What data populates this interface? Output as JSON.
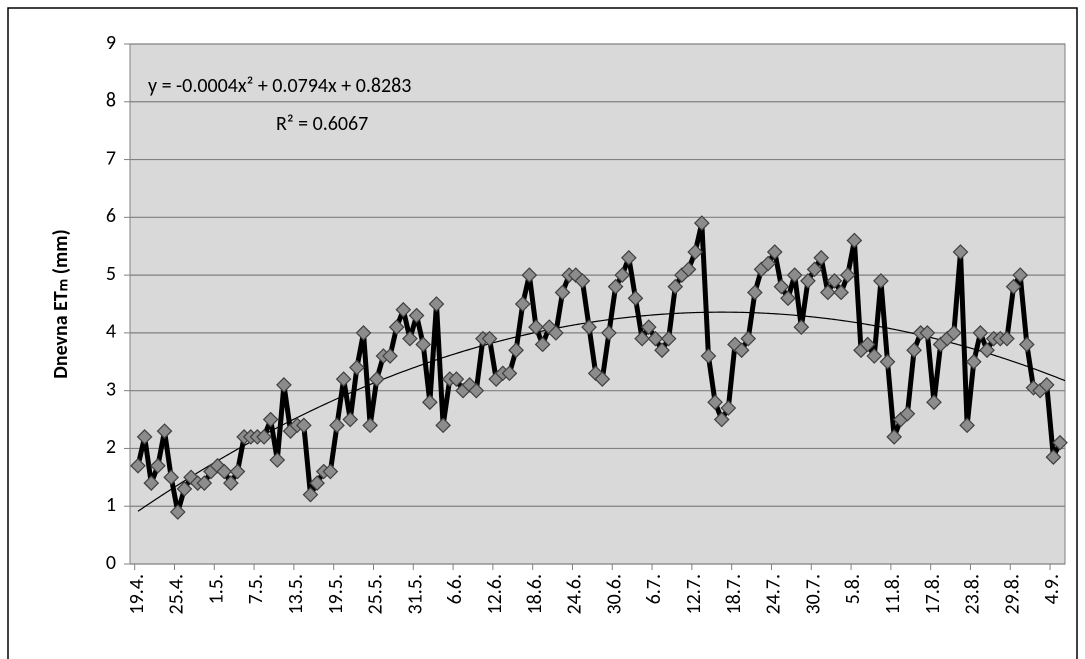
{
  "chart_data": {
    "type": "line",
    "y_label": "Dnevna ETₘ (mm)",
    "categories": [
      "19.4.",
      null,
      null,
      null,
      null,
      null,
      "25.4.",
      null,
      null,
      null,
      null,
      null,
      "1.5.",
      null,
      null,
      null,
      null,
      null,
      "7.5.",
      null,
      null,
      null,
      null,
      null,
      "13.5.",
      null,
      null,
      null,
      null,
      null,
      "19.5.",
      null,
      null,
      null,
      null,
      null,
      "25.5.",
      null,
      null,
      null,
      null,
      null,
      "31.5.",
      null,
      null,
      null,
      null,
      null,
      "6.6.",
      null,
      null,
      null,
      null,
      null,
      "12.6.",
      null,
      null,
      null,
      null,
      null,
      "18.6.",
      null,
      null,
      null,
      null,
      null,
      "24.6.",
      null,
      null,
      null,
      null,
      null,
      "30.6.",
      null,
      null,
      null,
      null,
      null,
      "6.7.",
      null,
      null,
      null,
      null,
      null,
      "12.7.",
      null,
      null,
      null,
      null,
      null,
      "18.7.",
      null,
      null,
      null,
      null,
      null,
      "24.7.",
      null,
      null,
      null,
      null,
      null,
      "30.7.",
      null,
      null,
      null,
      null,
      null,
      "5.8.",
      null,
      null,
      null,
      null,
      null,
      "11.8.",
      null,
      null,
      null,
      null,
      null,
      "17.8.",
      null,
      null,
      null,
      null,
      null,
      "23.8.",
      null,
      null,
      null,
      null,
      null,
      "29.8.",
      null,
      null,
      null,
      null,
      null,
      "4.9.",
      null
    ],
    "series": [
      {
        "color": "#000000",
        "values": [
          1.7,
          2.2,
          1.4,
          1.7,
          2.3,
          1.5,
          0.9,
          1.3,
          1.5,
          1.4,
          1.4,
          1.6,
          1.7,
          1.6,
          1.4,
          1.6,
          2.2,
          2.2,
          2.2,
          2.2,
          2.5,
          1.8,
          3.1,
          2.3,
          2.4,
          2.4,
          1.2,
          1.4,
          1.6,
          1.6,
          2.4,
          3.2,
          2.5,
          3.4,
          4.0,
          2.4,
          3.2,
          3.6,
          3.6,
          4.1,
          4.4,
          3.9,
          4.3,
          3.8,
          2.8,
          4.5,
          2.4,
          3.2,
          3.2,
          3.0,
          3.1,
          3.0,
          3.9,
          3.9,
          3.2,
          3.3,
          3.3,
          3.7,
          4.5,
          5.0,
          4.1,
          3.8,
          4.1,
          4.0,
          4.7,
          5.0,
          5.0,
          4.9,
          4.1,
          3.3,
          3.2,
          4.0,
          4.8,
          5.0,
          5.3,
          4.6,
          3.9,
          4.1,
          3.9,
          3.7,
          3.9,
          4.8,
          5.0,
          5.1,
          5.4,
          5.9,
          3.6,
          2.8,
          2.5,
          2.7,
          3.8,
          3.7,
          3.9,
          4.7,
          5.1,
          5.2,
          5.4,
          4.8,
          4.6,
          5.0,
          4.1,
          4.9,
          5.1,
          5.3,
          4.7,
          4.9,
          4.7,
          5.0,
          5.6,
          3.7,
          3.8,
          3.6,
          4.9,
          3.5,
          2.2,
          2.5,
          2.6,
          3.7,
          4.0,
          4.0,
          2.8,
          3.8,
          3.9,
          4.0,
          5.4,
          2.4,
          3.5,
          4.0,
          3.7,
          3.9,
          3.9,
          3.9,
          4.8,
          5.0,
          3.8,
          3.05,
          3.0,
          3.1,
          1.85,
          2.1
        ]
      }
    ],
    "marker_color": "#8c8c8c",
    "ylim": [
      0,
      9
    ],
    "yticks": [
      0,
      1,
      2,
      3,
      4,
      5,
      6,
      7,
      8,
      9
    ],
    "grid": true,
    "trendline": {
      "order": 2,
      "color": "#000000",
      "equation": "y = -0.0004x² + 0.0794x + 0.8283",
      "r_squared": "R² = 0.6067"
    }
  }
}
